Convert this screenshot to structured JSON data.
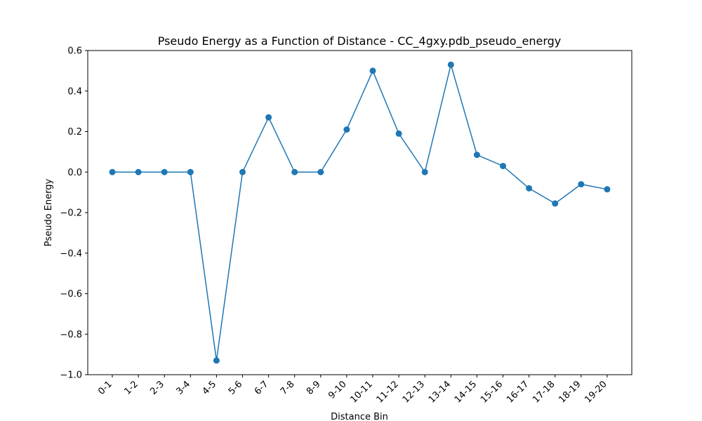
{
  "chart_data": {
    "type": "line",
    "title": "Pseudo Energy as a Function of Distance - CC_4gxy.pdb_pseudo_energy",
    "xlabel": "Distance Bin",
    "ylabel": "Pseudo Energy",
    "categories": [
      "0-1",
      "1-2",
      "2-3",
      "3-4",
      "4-5",
      "5-6",
      "6-7",
      "7-8",
      "8-9",
      "9-10",
      "10-11",
      "11-12",
      "12-13",
      "13-14",
      "14-15",
      "15-16",
      "16-17",
      "17-18",
      "18-19",
      "19-20"
    ],
    "series": [
      {
        "values": [
          0.0,
          0.0,
          0.0,
          0.0,
          -0.93,
          0.0,
          0.27,
          0.0,
          0.0,
          0.21,
          0.5,
          0.19,
          0.0,
          0.53,
          0.085,
          0.03,
          -0.08,
          -0.155,
          -0.06,
          -0.085
        ],
        "color": "#1f77b4",
        "marker": "circle"
      }
    ],
    "ylim": [
      -1.0,
      0.6
    ],
    "yticks": [
      -1.0,
      -0.8,
      -0.6,
      -0.4,
      -0.2,
      0.0,
      0.2,
      0.4,
      0.6
    ],
    "ytick_labels": [
      "−1.0",
      "−0.8",
      "−0.6",
      "−0.4",
      "−0.2",
      "0.0",
      "0.2",
      "0.4",
      "0.6"
    ],
    "grid": false,
    "legend": "none"
  }
}
